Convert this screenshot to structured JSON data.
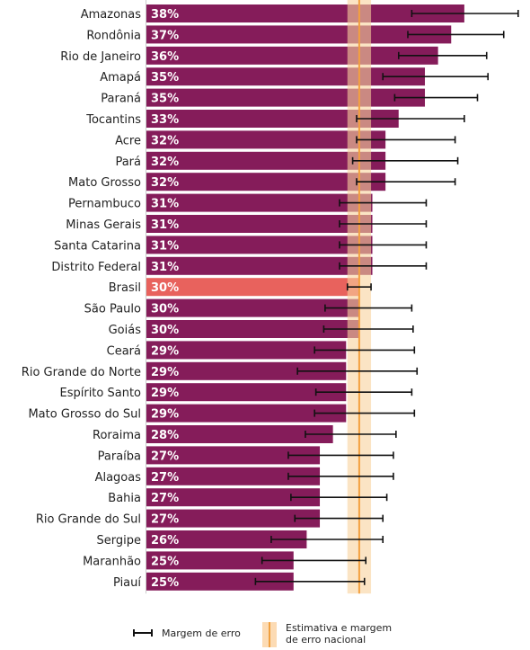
{
  "chart_data": {
    "type": "bar",
    "orientation": "horizontal",
    "categories": [
      "Amazonas",
      "Rondônia",
      "Rio de Janeiro",
      "Amapá",
      "Paraná",
      "Tocantins",
      "Acre",
      "Pará",
      "Mato Grosso",
      "Pernambuco",
      "Minas Gerais",
      "Santa Catarina",
      "Distrito Federal",
      "Brasil",
      "São Paulo",
      "Goiás",
      "Ceará",
      "Rio Grande do Norte",
      "Espírito Santo",
      "Mato Grosso do Sul",
      "Roraima",
      "Paraíba",
      "Alagoas",
      "Bahia",
      "Rio Grande do Sul",
      "Sergipe",
      "Maranhão",
      "Piauí"
    ],
    "values": [
      38,
      37,
      36,
      35,
      35,
      33,
      32,
      32,
      32,
      31,
      31,
      31,
      31,
      30,
      30,
      30,
      29,
      29,
      29,
      29,
      28,
      27,
      27,
      27,
      27,
      26,
      25,
      25
    ],
    "value_labels": [
      "38%",
      "37%",
      "36%",
      "35%",
      "35%",
      "33%",
      "32%",
      "32%",
      "32%",
      "31%",
      "31%",
      "31%",
      "31%",
      "30%",
      "30%",
      "30%",
      "29%",
      "29%",
      "29%",
      "29%",
      "28%",
      "27%",
      "27%",
      "27%",
      "27%",
      "26%",
      "25%",
      "25%"
    ],
    "error_low": [
      34.0,
      33.7,
      33.0,
      31.8,
      32.7,
      29.8,
      29.8,
      29.5,
      29.8,
      28.5,
      28.5,
      28.5,
      28.5,
      29.1,
      27.4,
      27.3,
      26.6,
      25.3,
      26.7,
      26.6,
      25.9,
      24.6,
      24.6,
      24.8,
      25.1,
      23.3,
      22.6,
      22.1
    ],
    "error_high": [
      42.1,
      41.0,
      39.7,
      39.8,
      39.0,
      38.0,
      37.3,
      37.5,
      37.3,
      35.1,
      35.1,
      35.1,
      35.1,
      30.9,
      34.0,
      34.1,
      34.2,
      34.4,
      34.0,
      34.2,
      32.8,
      32.6,
      32.6,
      32.1,
      31.8,
      31.8,
      30.5,
      30.4
    ],
    "national_estimate": 30,
    "national_error": [
      29.1,
      30.9
    ],
    "xlim": [
      13.8,
      43
    ],
    "colors": {
      "bar": "#851c5a",
      "highlight": "#e8625d",
      "band": "#f9d29c",
      "line": "#f3a03f",
      "error": "#111111"
    },
    "highlight_category": "Brasil",
    "legend": {
      "error_label": "Margem de erro",
      "national_label_line1": "Estimativa e margem",
      "national_label_line2": "de erro nacional"
    }
  }
}
